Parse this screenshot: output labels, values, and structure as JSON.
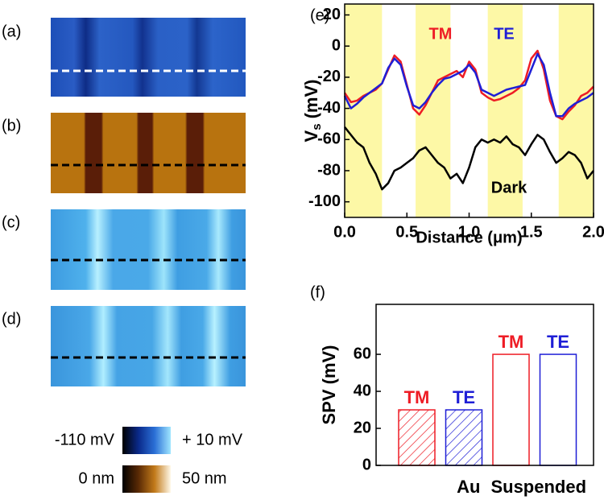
{
  "panel_labels": [
    "(a)",
    "(b)",
    "(c)",
    "(d)",
    "(e)",
    "(f)"
  ],
  "colorbars": [
    {
      "min_label": "-110 mV",
      "max_label": "+ 10 mV",
      "colors": [
        "#000000",
        "#0a2a8a",
        "#2b6fd6",
        "#9fe6ff"
      ]
    },
    {
      "min_label": "0 nm",
      "max_label": "50 nm",
      "colors": [
        "#000000",
        "#5a2a05",
        "#c27a1a",
        "#fff8e8"
      ]
    }
  ],
  "chart_data": [
    {
      "type": "line",
      "ylabel": "V",
      "ylabel_sub": "s",
      "ylabel_unit": "(mV)",
      "xlabel": "Distance (μm)",
      "xlim": [
        0,
        2
      ],
      "ylim": [
        -110,
        27
      ],
      "xticks": [
        {
          "value": 0,
          "label": "0.0"
        },
        0.5,
        {
          "value": 1,
          "label": "1.0"
        },
        1.5,
        {
          "value": 2,
          "label": "2.0"
        }
      ],
      "yticks": [
        -100,
        -80,
        -60,
        -40,
        -20,
        0,
        20
      ],
      "shade_color": "#fdf8a6",
      "shaded_regions": [
        [
          0,
          0.3
        ],
        [
          0.57,
          0.85
        ],
        [
          1.15,
          1.43
        ],
        [
          1.72,
          2.0
        ]
      ],
      "x": [
        0,
        0.05,
        0.1,
        0.15,
        0.2,
        0.25,
        0.3,
        0.35,
        0.4,
        0.45,
        0.5,
        0.55,
        0.6,
        0.65,
        0.7,
        0.75,
        0.8,
        0.85,
        0.9,
        0.95,
        1.0,
        1.05,
        1.1,
        1.15,
        1.2,
        1.25,
        1.3,
        1.35,
        1.4,
        1.45,
        1.5,
        1.55,
        1.6,
        1.65,
        1.7,
        1.75,
        1.8,
        1.85,
        1.9,
        1.95,
        2.0
      ],
      "series": [
        {
          "name": "TM",
          "color": "#ee1c25",
          "values": [
            -30,
            -36,
            -35,
            -32,
            -30,
            -28,
            -24,
            -15,
            -6,
            -10,
            -25,
            -40,
            -44,
            -38,
            -30,
            -22,
            -20,
            -18,
            -16,
            -20,
            -10,
            -15,
            -30,
            -33,
            -35,
            -34,
            -32,
            -30,
            -27,
            -22,
            -8,
            -3,
            -15,
            -35,
            -45,
            -47,
            -42,
            -38,
            -32,
            -30,
            -26
          ]
        },
        {
          "name": "TE",
          "color": "#1f1fd6",
          "values": [
            -32,
            -40,
            -37,
            -33,
            -30,
            -27,
            -24,
            -14,
            -8,
            -12,
            -26,
            -38,
            -40,
            -36,
            -30,
            -25,
            -21,
            -20,
            -18,
            -16,
            -12,
            -17,
            -28,
            -30,
            -32,
            -30,
            -28,
            -27,
            -26,
            -25,
            -15,
            -5,
            -12,
            -30,
            -45,
            -45,
            -40,
            -37,
            -35,
            -33,
            -30
          ]
        },
        {
          "name": "Dark",
          "color": "#000000",
          "values": [
            -52,
            -57,
            -62,
            -65,
            -75,
            -82,
            -92,
            -88,
            -80,
            -78,
            -75,
            -72,
            -67,
            -65,
            -70,
            -75,
            -78,
            -85,
            -82,
            -88,
            -78,
            -65,
            -60,
            -62,
            -60,
            -62,
            -58,
            -63,
            -65,
            -70,
            -63,
            -57,
            -60,
            -68,
            -75,
            -72,
            -68,
            -70,
            -75,
            -85,
            -80
          ]
        }
      ]
    },
    {
      "type": "bar",
      "ylabel": "SPV (mV)",
      "ylim": [
        0,
        87
      ],
      "yticks": [
        0,
        20,
        40,
        60
      ],
      "categories": [
        "Au",
        "Suspended"
      ],
      "hatched": [
        true,
        false
      ],
      "series": [
        {
          "name": "TM",
          "color": "#ee1c25",
          "values": [
            30,
            60
          ]
        },
        {
          "name": "TE",
          "color": "#1f1fd6",
          "values": [
            30,
            60
          ]
        }
      ]
    }
  ]
}
